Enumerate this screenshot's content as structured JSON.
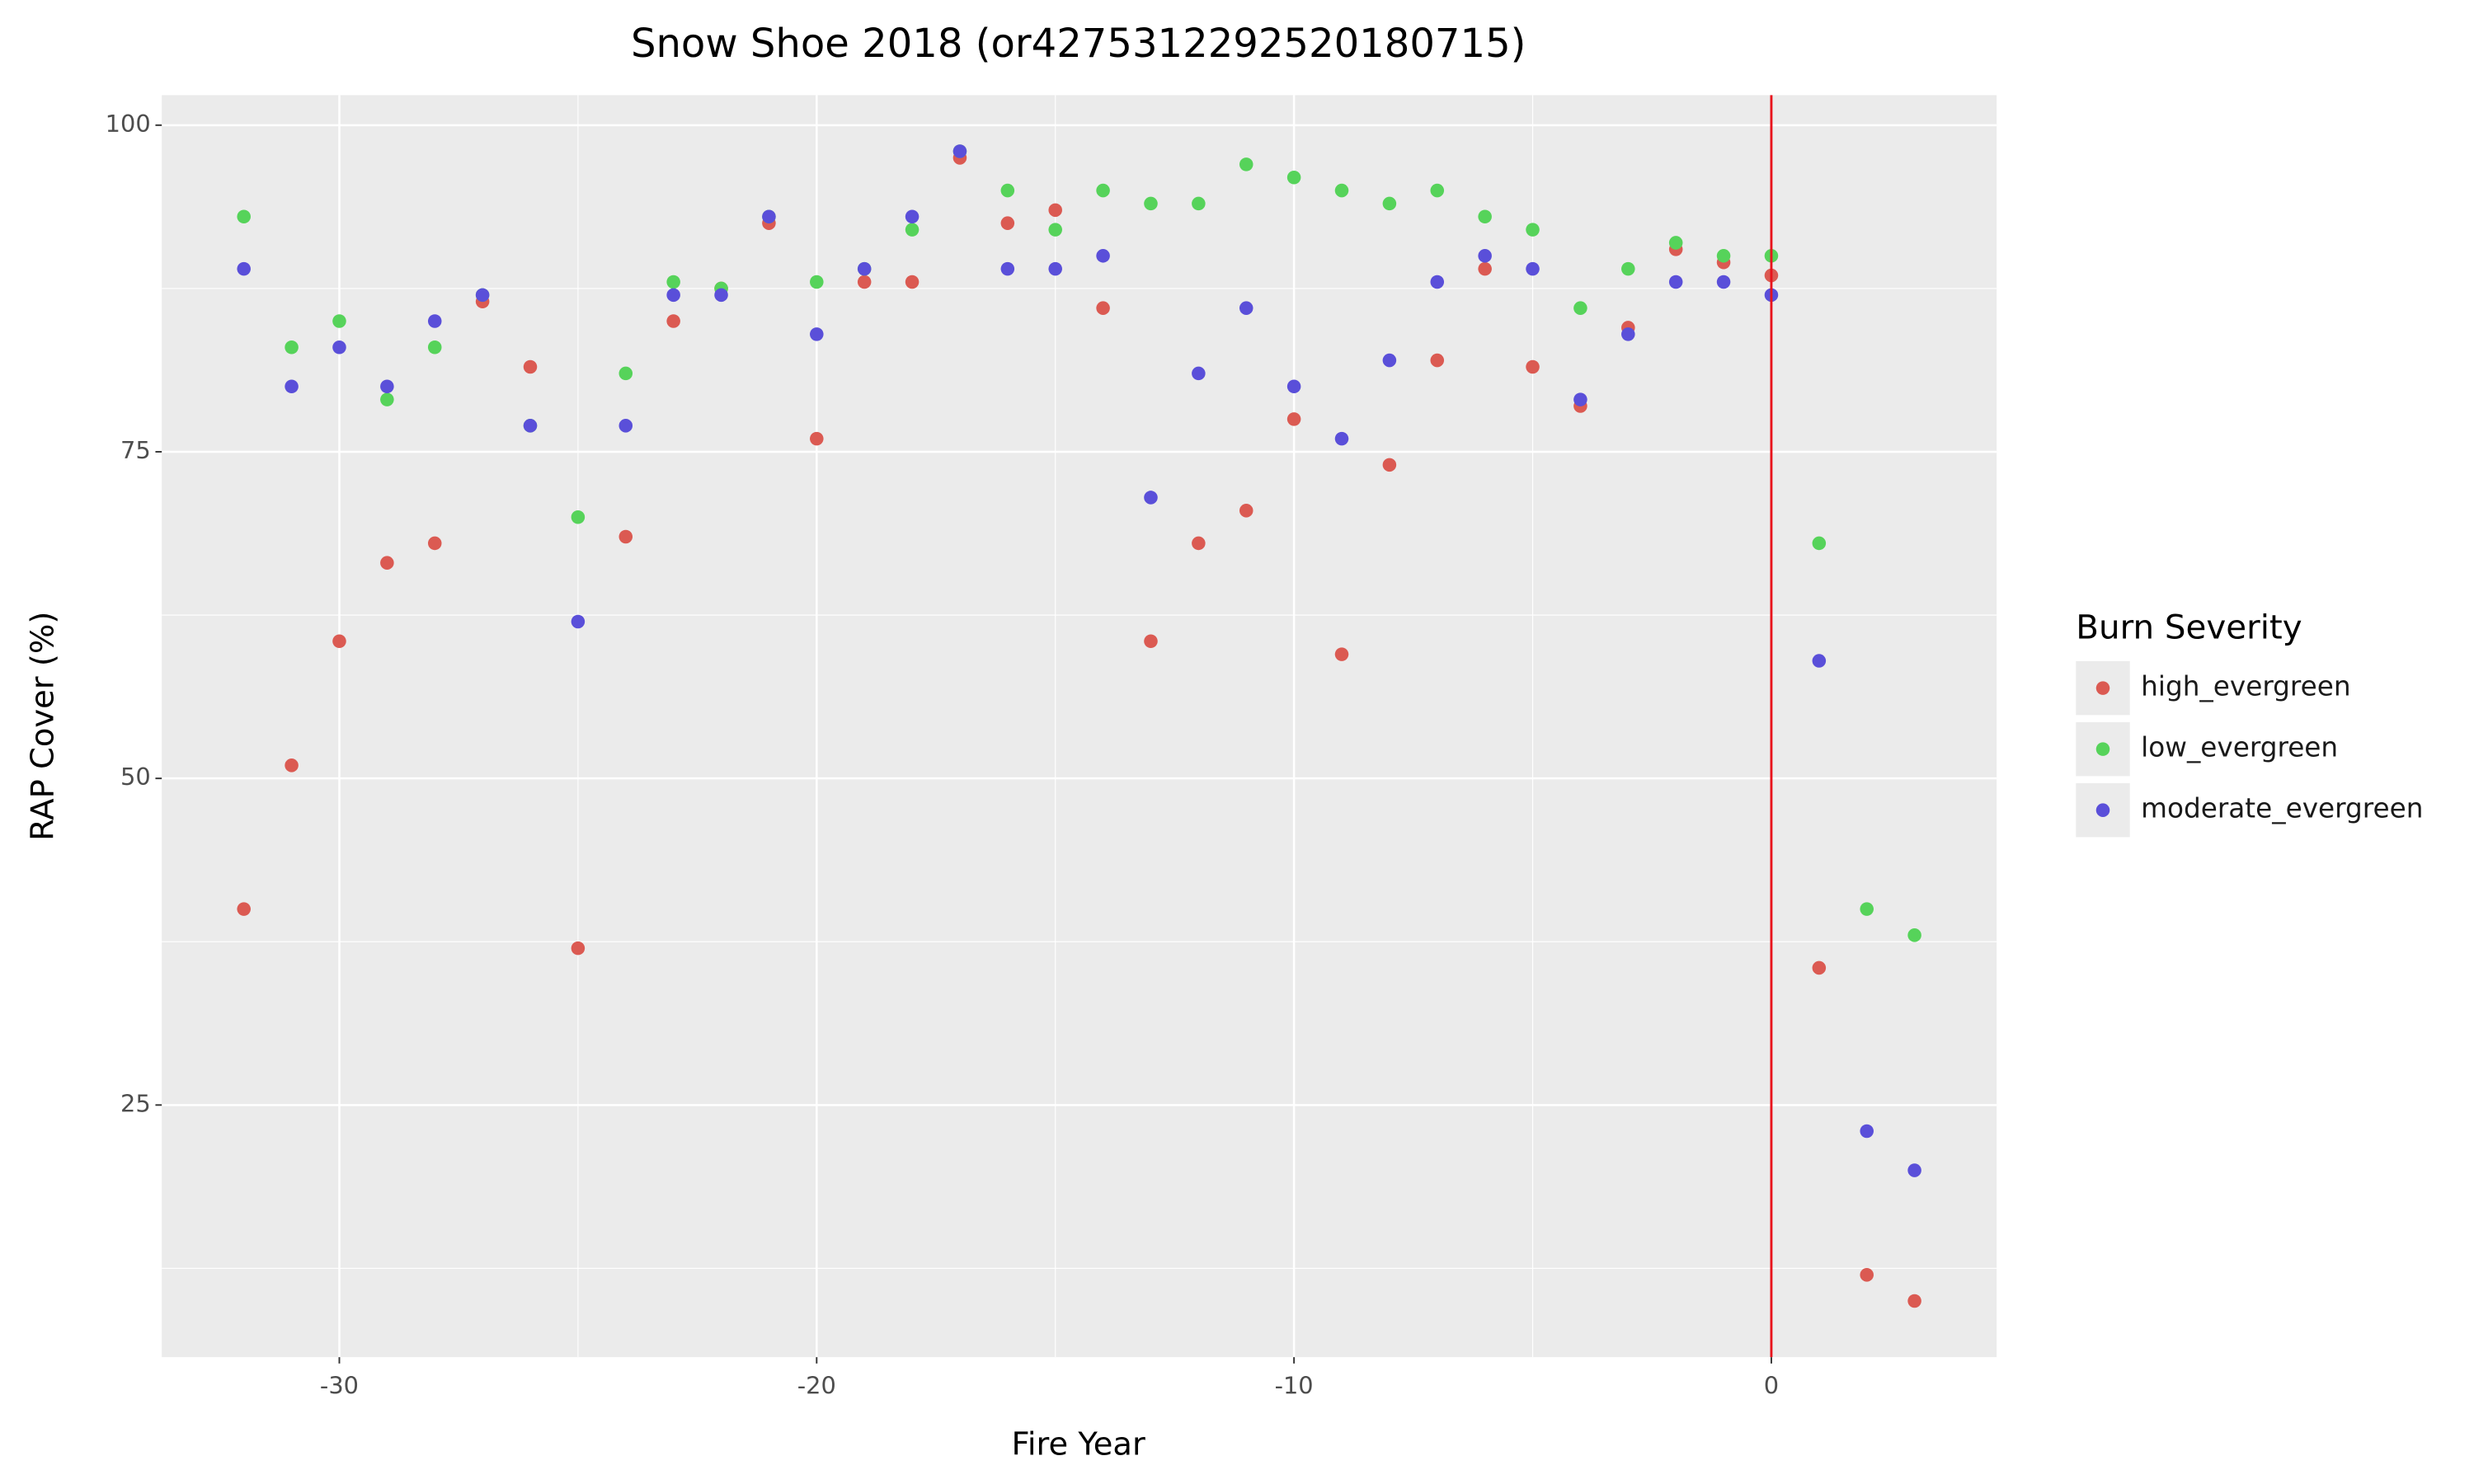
{
  "chart_data": {
    "type": "scatter",
    "title": "Snow Shoe 2018 (or4275312292520180715)",
    "x_label": "Fire Year",
    "y_label": "RAP Cover (%)",
    "legend_title": "Burn Severity",
    "legend_position": "right",
    "xlim": [
      -33.72,
      4.72
    ],
    "ylim": [
      5.7,
      102.3
    ],
    "xticks": [
      -30,
      -20,
      -10,
      0
    ],
    "yticks": [
      25,
      50,
      75,
      100
    ],
    "grid": true,
    "vline": 0,
    "vline_color": "#e8141c",
    "x": [
      -32,
      -31,
      -30,
      -29,
      -28,
      -27,
      -26,
      -25,
      -24,
      -23,
      -22,
      -21,
      -20,
      -19,
      -18,
      -17,
      -16,
      -15,
      -14,
      -13,
      -12,
      -11,
      -10,
      -9,
      -8,
      -7,
      -6,
      -5,
      -4,
      -3,
      -2,
      -1,
      0,
      1,
      2,
      3
    ],
    "series": [
      {
        "name": "high_evergreen",
        "color": "#db5a52",
        "values": [
          40,
          51,
          60.5,
          66.5,
          68,
          86.5,
          81.5,
          37,
          68.5,
          85,
          87.5,
          92.5,
          76,
          88,
          88,
          97.5,
          92.5,
          93.5,
          86,
          60.5,
          68,
          70.5,
          77.5,
          59.5,
          74,
          82,
          89,
          81.5,
          78.5,
          84.5,
          90.5,
          89.5,
          88.5,
          35.5,
          12,
          10
        ]
      },
      {
        "name": "low_evergreen",
        "color": "#56d35a",
        "values": [
          93,
          83,
          85,
          79,
          83,
          87,
          77,
          70,
          81,
          88,
          87.5,
          93,
          88,
          89,
          92,
          98,
          95,
          92,
          95,
          94,
          94,
          97,
          96,
          95,
          94,
          95,
          93,
          92,
          86,
          89,
          91,
          90,
          90,
          68,
          40,
          38
        ]
      },
      {
        "name": "moderate_evergreen",
        "color": "#5a4fd9",
        "values": [
          89,
          80,
          83,
          80,
          85,
          87,
          77,
          62,
          77,
          87,
          87,
          93,
          84,
          89,
          93,
          98,
          89,
          89,
          90,
          71.5,
          81,
          86,
          80,
          76,
          82,
          88,
          90,
          89,
          79,
          84,
          88,
          88,
          87,
          59,
          23,
          20
        ]
      }
    ]
  }
}
